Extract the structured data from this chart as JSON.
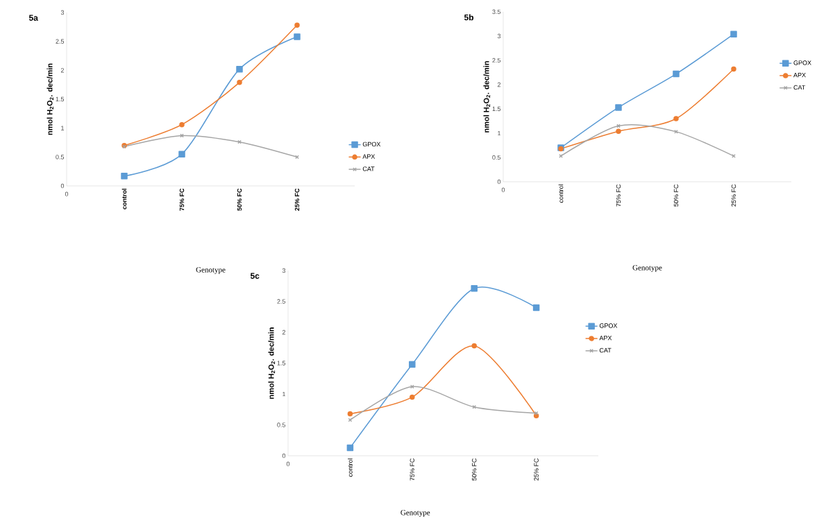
{
  "chart_data": [
    {
      "type": "line",
      "title": "5a",
      "xlabel": "Genotype",
      "ylabel": "nmol H$_{2}$O$_{2}$. dec/min",
      "categories": [
        "control",
        "75% FC",
        "50% FC",
        "25% FC"
      ],
      "ylim": [
        0,
        3
      ],
      "yticks": [
        0,
        0.5,
        1,
        1.5,
        2,
        2.5,
        3
      ],
      "legend": "right",
      "annotations": [
        "0"
      ],
      "series": [
        {
          "name": "GPOX",
          "color": "#5b9bd5",
          "marker": "square",
          "values": [
            0.17,
            0.55,
            2.02,
            2.58
          ]
        },
        {
          "name": "APX",
          "color": "#ed7d31",
          "marker": "circle",
          "values": [
            0.7,
            1.06,
            1.79,
            2.78
          ]
        },
        {
          "name": "CAT",
          "color": "#a5a5a5",
          "marker": "cross",
          "values": [
            0.68,
            0.87,
            0.76,
            0.5
          ]
        }
      ]
    },
    {
      "type": "line",
      "title": "5b",
      "xlabel": "Genotype",
      "ylabel": "nmol H$_{2}$O$_{2}$. dec/min",
      "categories": [
        "control",
        "75% FC",
        "50% FC",
        "25% FC"
      ],
      "ylim": [
        0,
        3.5
      ],
      "yticks": [
        0,
        0.5,
        1,
        1.5,
        2,
        2.5,
        3,
        3.5
      ],
      "legend": "right",
      "annotations": [
        "0"
      ],
      "series": [
        {
          "name": "GPOX",
          "color": "#5b9bd5",
          "marker": "square",
          "values": [
            0.7,
            1.53,
            2.22,
            3.04
          ]
        },
        {
          "name": "APX",
          "color": "#ed7d31",
          "marker": "circle",
          "values": [
            0.68,
            1.04,
            1.3,
            2.32
          ]
        },
        {
          "name": "CAT",
          "color": "#a5a5a5",
          "marker": "cross",
          "values": [
            0.53,
            1.15,
            1.03,
            0.53
          ]
        }
      ]
    },
    {
      "type": "line",
      "title": "5c",
      "xlabel": "Genotype",
      "ylabel": "nmol H$_{2}$O$_{2}$. dec/min",
      "categories": [
        "control",
        "75% FC",
        "50% FC",
        "25% FC"
      ],
      "ylim": [
        0,
        3
      ],
      "yticks": [
        0,
        0.5,
        1,
        1.5,
        2,
        2.5,
        3
      ],
      "legend": "right",
      "annotations": [
        "0"
      ],
      "series": [
        {
          "name": "GPOX",
          "color": "#5b9bd5",
          "marker": "square",
          "values": [
            0.13,
            1.48,
            2.71,
            2.4
          ]
        },
        {
          "name": "APX",
          "color": "#ed7d31",
          "marker": "circle",
          "values": [
            0.68,
            0.95,
            1.78,
            0.65
          ]
        },
        {
          "name": "CAT",
          "color": "#a5a5a5",
          "marker": "cross",
          "values": [
            0.58,
            1.12,
            0.79,
            0.69
          ]
        }
      ]
    }
  ]
}
